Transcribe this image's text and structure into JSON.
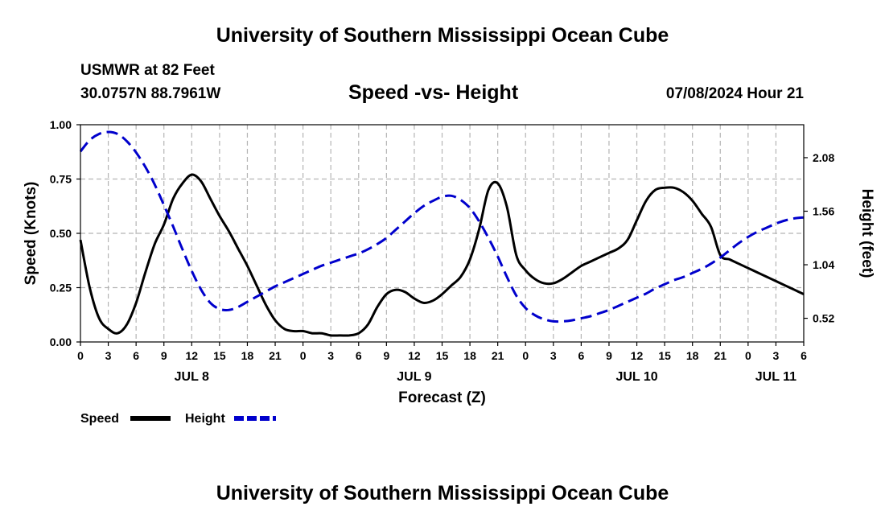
{
  "header": {
    "title_top": "University of Southern Mississippi Ocean Cube",
    "station": "USMWR at 82 Feet",
    "coords": "30.0757N  88.7961W",
    "datetime": "07/08/2024 Hour 21",
    "title_bottom": "University of Southern Mississippi Ocean Cube"
  },
  "chart_data": {
    "type": "line",
    "title": "Speed -vs- Height",
    "xlabel": "Forecast (Z)",
    "ylabel_left": "Speed (Knots)",
    "ylabel_right": "Height (feet)",
    "x_range_hours": [
      0,
      78
    ],
    "x_tick_step_hours": 3,
    "x_tick_labels": [
      "0",
      "3",
      "6",
      "9",
      "12",
      "15",
      "18",
      "21",
      "0",
      "3",
      "6",
      "9",
      "12",
      "15",
      "18",
      "21",
      "0",
      "3",
      "6",
      "9",
      "12",
      "15",
      "18",
      "21",
      "0",
      "3",
      "6"
    ],
    "date_labels": [
      {
        "label": "JUL 8",
        "hour": 12
      },
      {
        "label": "JUL 9",
        "hour": 36
      },
      {
        "label": "JUL 10",
        "hour": 60
      },
      {
        "label": "JUL 11",
        "hour": 75
      }
    ],
    "ylim_left": [
      0,
      1
    ],
    "y_ticks_left": [
      "0.00",
      "0.25",
      "0.50",
      "0.75",
      "1.00"
    ],
    "ylim_right": [
      0.29,
      2.4
    ],
    "y_ticks_right": [
      "0.52",
      "1.04",
      "1.56",
      "2.08"
    ],
    "grid": true,
    "series": [
      {
        "name": "Speed",
        "axis": "left",
        "color": "#000000",
        "style": "solid",
        "x": [
          0,
          1,
          2,
          3,
          4,
          5,
          6,
          7,
          8,
          9,
          10,
          11,
          12,
          13,
          14,
          15,
          16,
          17,
          18,
          19,
          20,
          21,
          22,
          23,
          24,
          25,
          26,
          27,
          28,
          29,
          30,
          31,
          32,
          33,
          34,
          35,
          36,
          37,
          38,
          39,
          40,
          41,
          42,
          43,
          44,
          45,
          46,
          47,
          48,
          49,
          50,
          51,
          52,
          53,
          54,
          55,
          56,
          57,
          58,
          59,
          60,
          61,
          62,
          63,
          64,
          65,
          66,
          67,
          68,
          69,
          70,
          71,
          72,
          73,
          74,
          75,
          76,
          77,
          78
        ],
        "values": [
          0.47,
          0.25,
          0.11,
          0.06,
          0.04,
          0.08,
          0.18,
          0.32,
          0.45,
          0.54,
          0.66,
          0.73,
          0.77,
          0.74,
          0.66,
          0.58,
          0.51,
          0.43,
          0.35,
          0.26,
          0.17,
          0.1,
          0.06,
          0.05,
          0.05,
          0.04,
          0.04,
          0.03,
          0.03,
          0.03,
          0.04,
          0.08,
          0.16,
          0.22,
          0.24,
          0.23,
          0.2,
          0.18,
          0.19,
          0.22,
          0.26,
          0.3,
          0.38,
          0.52,
          0.7,
          0.73,
          0.62,
          0.4,
          0.33,
          0.29,
          0.27,
          0.27,
          0.29,
          0.32,
          0.35,
          0.37,
          0.39,
          0.41,
          0.43,
          0.47,
          0.56,
          0.65,
          0.7,
          0.71,
          0.71,
          0.69,
          0.65,
          0.59,
          0.53,
          0.4,
          0.38,
          0.36,
          0.34,
          0.32,
          0.3,
          0.28,
          0.26,
          0.24,
          0.22
        ]
      },
      {
        "name": "Height",
        "axis": "right",
        "color": "#0000CC",
        "style": "dashed",
        "x": [
          0,
          1,
          2,
          3,
          4,
          5,
          6,
          7,
          8,
          9,
          10,
          11,
          12,
          13,
          14,
          15,
          16,
          17,
          18,
          19,
          20,
          21,
          22,
          23,
          24,
          25,
          26,
          27,
          28,
          29,
          30,
          31,
          32,
          33,
          34,
          35,
          36,
          37,
          38,
          39,
          40,
          41,
          42,
          43,
          44,
          45,
          46,
          47,
          48,
          49,
          50,
          51,
          52,
          53,
          54,
          55,
          56,
          57,
          58,
          59,
          60,
          61,
          62,
          63,
          64,
          65,
          66,
          67,
          68,
          69,
          70,
          71,
          72,
          73,
          74,
          75,
          76,
          77,
          78
        ],
        "values": [
          2.14,
          2.25,
          2.31,
          2.33,
          2.31,
          2.24,
          2.13,
          1.99,
          1.82,
          1.62,
          1.41,
          1.19,
          0.98,
          0.8,
          0.67,
          0.61,
          0.6,
          0.63,
          0.68,
          0.73,
          0.78,
          0.83,
          0.87,
          0.91,
          0.95,
          0.99,
          1.03,
          1.06,
          1.09,
          1.12,
          1.15,
          1.19,
          1.24,
          1.3,
          1.38,
          1.46,
          1.54,
          1.61,
          1.66,
          1.7,
          1.71,
          1.67,
          1.59,
          1.46,
          1.3,
          1.12,
          0.92,
          0.74,
          0.62,
          0.55,
          0.51,
          0.49,
          0.49,
          0.5,
          0.52,
          0.54,
          0.57,
          0.6,
          0.64,
          0.68,
          0.72,
          0.76,
          0.81,
          0.85,
          0.89,
          0.92,
          0.96,
          1.0,
          1.05,
          1.11,
          1.18,
          1.25,
          1.31,
          1.36,
          1.4,
          1.44,
          1.47,
          1.49,
          1.5
        ]
      }
    ],
    "legend": {
      "placement": "bottom-left",
      "items": [
        {
          "label": "Speed",
          "color": "#000000",
          "style": "solid"
        },
        {
          "label": "Height",
          "color": "#0000CC",
          "style": "dashed"
        }
      ]
    }
  }
}
